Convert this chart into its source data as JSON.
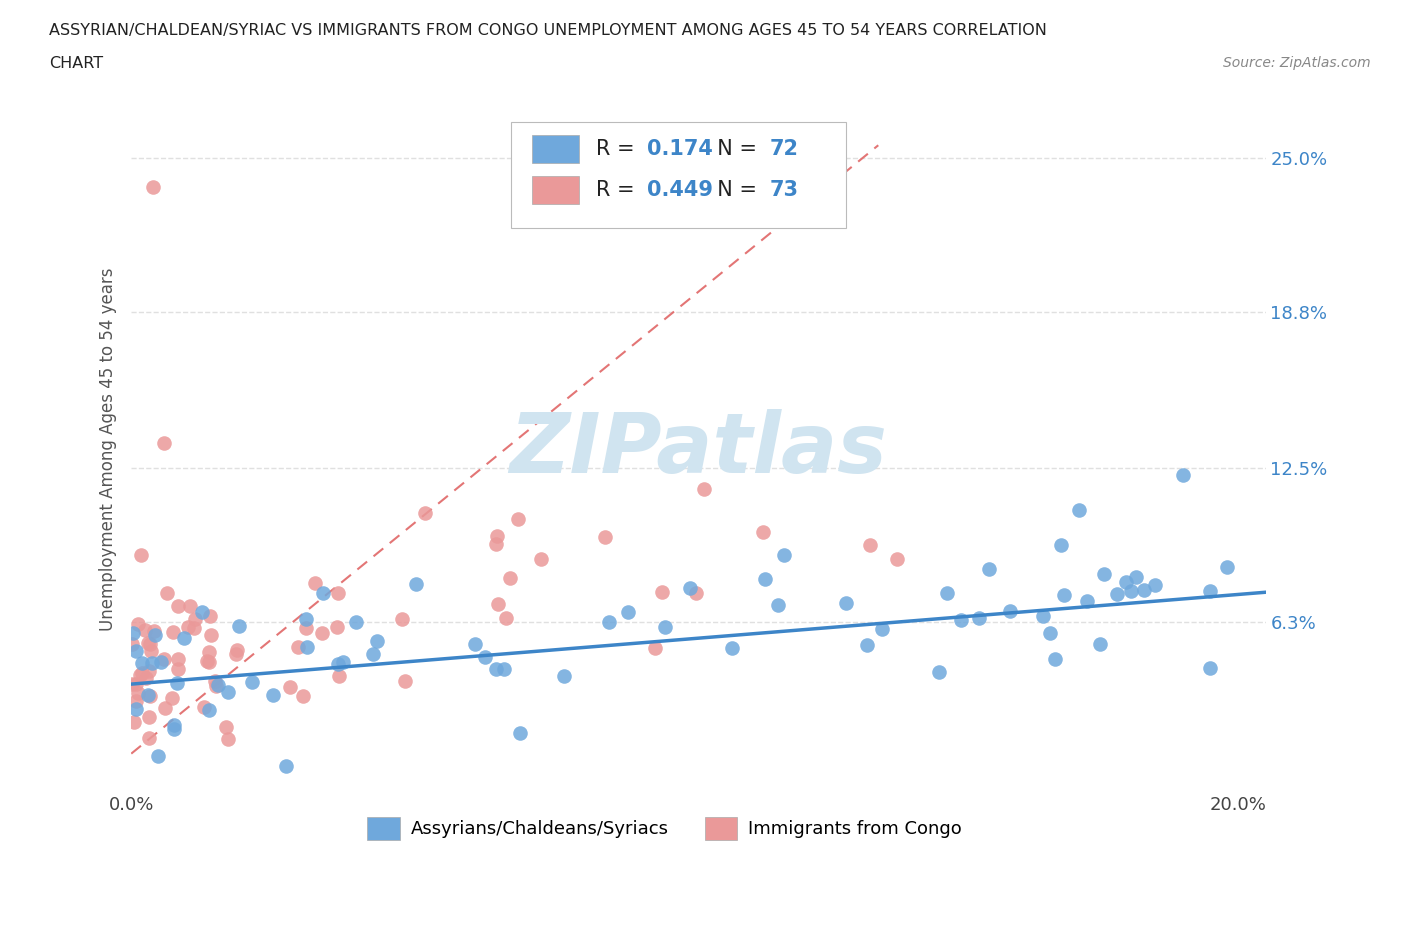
{
  "title_line1": "ASSYRIAN/CHALDEAN/SYRIAC VS IMMIGRANTS FROM CONGO UNEMPLOYMENT AMONG AGES 45 TO 54 YEARS CORRELATION",
  "title_line2": "CHART",
  "source": "Source: ZipAtlas.com",
  "ylabel": "Unemployment Among Ages 45 to 54 years",
  "xlim": [
    0.0,
    0.205
  ],
  "ylim": [
    -0.005,
    0.27
  ],
  "xticks": [
    0.0,
    0.05,
    0.1,
    0.15,
    0.2
  ],
  "xticklabels": [
    "0.0%",
    "",
    "",
    "",
    "20.0%"
  ],
  "ytick_positions": [
    0.063,
    0.125,
    0.188,
    0.25
  ],
  "ytick_labels": [
    "6.3%",
    "12.5%",
    "18.8%",
    "25.0%"
  ],
  "r_blue": 0.174,
  "n_blue": 72,
  "r_pink": 0.449,
  "n_pink": 73,
  "blue_color": "#6fa8dc",
  "pink_color": "#ea9999",
  "trend_blue_color": "#3d85c8",
  "trend_pink_color": "#e06666",
  "legend_label_blue": "Assyrians/Chaldeans/Syriacs",
  "legend_label_pink": "Immigrants from Congo",
  "background_color": "#ffffff",
  "grid_color": "#e0e0e0",
  "watermark_color": "#d0e4f0"
}
